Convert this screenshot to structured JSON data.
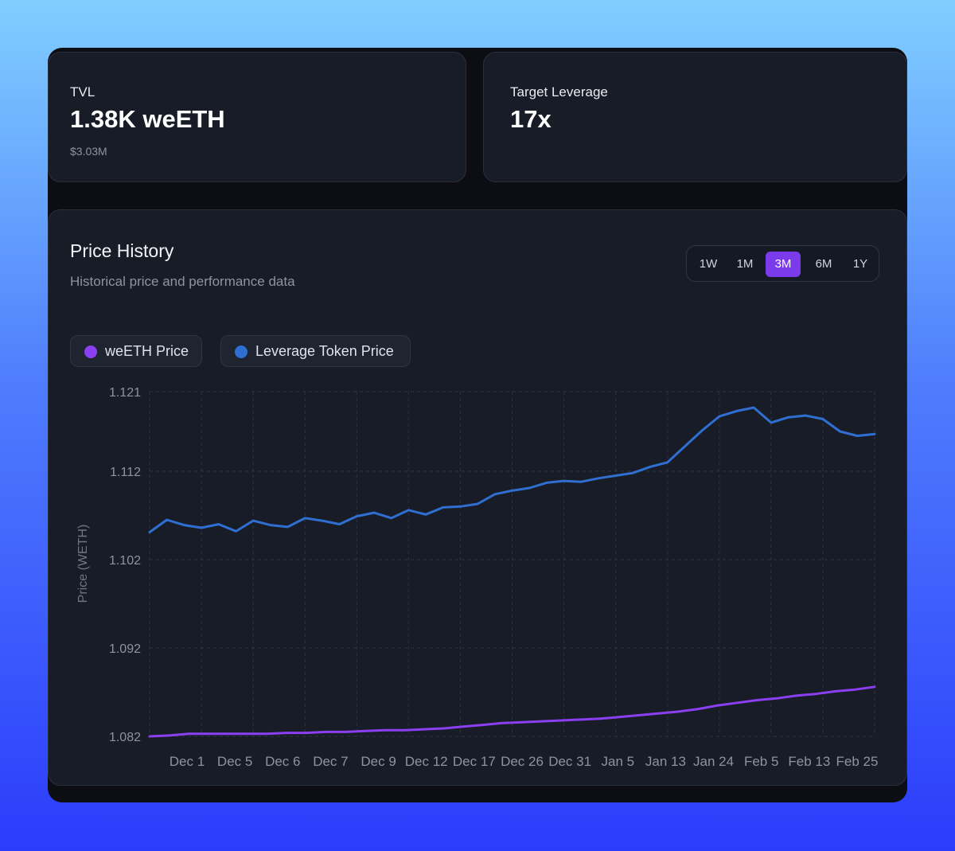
{
  "stats": {
    "tvl": {
      "label": "TVL",
      "value": "1.38K weETH",
      "sub": "$3.03M"
    },
    "leverage": {
      "label": "Target Leverage",
      "value": "17x"
    }
  },
  "chart_card": {
    "title": "Price History",
    "subtitle": "Historical price and performance data",
    "ranges": [
      "1W",
      "1M",
      "3M",
      "6M",
      "1Y"
    ],
    "active_range": "3M"
  },
  "colors": {
    "weeth": "#8b3ff0",
    "leverage": "#2f6fd2",
    "active_range": "#7b3bea"
  },
  "chart_data": {
    "type": "line",
    "ylabel": "Price (WETH)",
    "xlabel": "",
    "ylim": [
      1.082,
      1.121
    ],
    "yticks": [
      "1.121",
      "1.112",
      "1.102",
      "1.092",
      "1.082"
    ],
    "x_tick_labels": [
      "Dec 1",
      "Dec 5",
      "Dec 6",
      "Dec 7",
      "Dec 9",
      "Dec 12",
      "Dec 17",
      "Dec 26",
      "Dec 31",
      "Jan 5",
      "Jan 13",
      "Jan 24",
      "Feb 5",
      "Feb 13",
      "Feb 25"
    ],
    "grid": true,
    "legend_position": "top-left",
    "series": [
      {
        "name": "weETH Price",
        "color": "#8b3ff0",
        "values": [
          1.082,
          1.0821,
          1.0823,
          1.0823,
          1.0823,
          1.0823,
          1.0823,
          1.0824,
          1.0824,
          1.0825,
          1.0825,
          1.0826,
          1.0827,
          1.0827,
          1.0828,
          1.0829,
          1.0831,
          1.0833,
          1.0835,
          1.0836,
          1.0837,
          1.0838,
          1.0839,
          1.084,
          1.0842,
          1.0844,
          1.0846,
          1.0848,
          1.0851,
          1.0855,
          1.0858,
          1.0861,
          1.0863,
          1.0866,
          1.0868,
          1.0871,
          1.0873,
          1.0876
        ]
      },
      {
        "name": "Leverage Token Price",
        "color": "#2f6fd2",
        "values": [
          1.1051,
          1.1065,
          1.1059,
          1.1056,
          1.106,
          1.1052,
          1.1064,
          1.1059,
          1.1057,
          1.1067,
          1.1064,
          1.106,
          1.1069,
          1.1073,
          1.1067,
          1.1076,
          1.1071,
          1.1079,
          1.108,
          1.1083,
          1.1094,
          1.1098,
          1.1101,
          1.1107,
          1.1109,
          1.1108,
          1.1112,
          1.1115,
          1.1118,
          1.1125,
          1.113,
          1.1148,
          1.1166,
          1.1182,
          1.1188,
          1.1192,
          1.1175,
          1.1181,
          1.1183,
          1.1179,
          1.1165,
          1.116,
          1.1162
        ]
      }
    ]
  }
}
